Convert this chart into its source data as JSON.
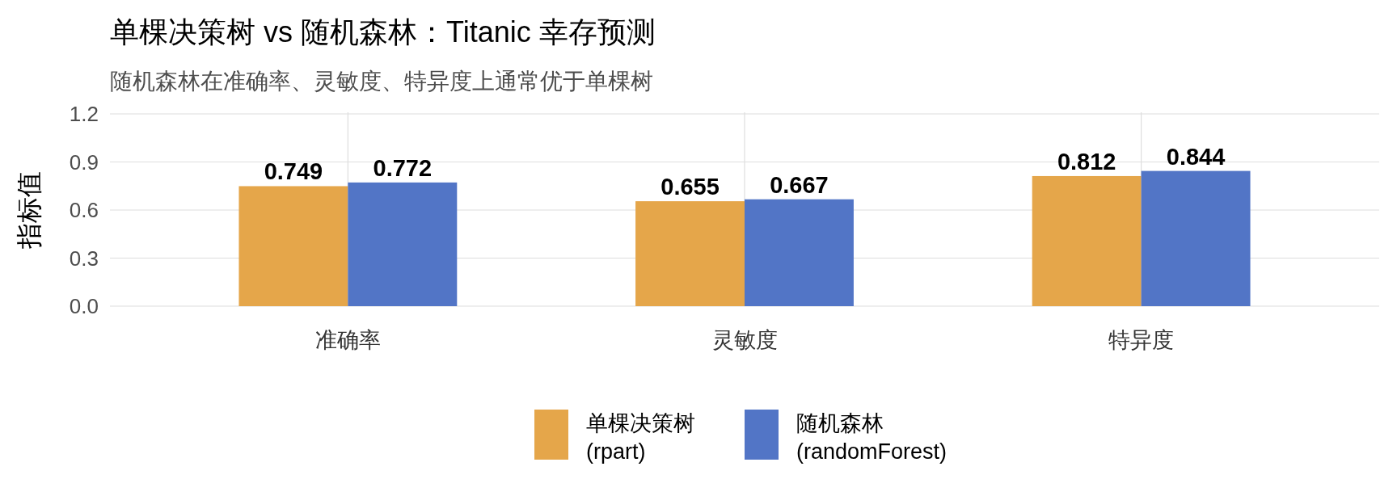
{
  "chart_data": {
    "type": "bar",
    "title": "单棵决策树 vs 随机森林：Titanic 幸存预测",
    "subtitle": "随机森林在准确率、灵敏度、特异度上通常优于单棵树",
    "ylabel": "指标值",
    "categories": [
      "准确率",
      "灵敏度",
      "特异度"
    ],
    "series": [
      {
        "name": "单棵决策树\n(rpart)",
        "color": "#e5a64a",
        "values": [
          0.749,
          0.655,
          0.812
        ]
      },
      {
        "name": "随机森林\n(randomForest)",
        "color": "#5275c6",
        "values": [
          0.772,
          0.667,
          0.844
        ]
      }
    ],
    "ylim": [
      0,
      1.2
    ],
    "yticks": [
      {
        "value": 0,
        "label": "0.0"
      },
      0.3,
      0.6,
      0.9,
      1.2
    ],
    "grid": true,
    "legend": "bottom",
    "data_labels": true
  }
}
